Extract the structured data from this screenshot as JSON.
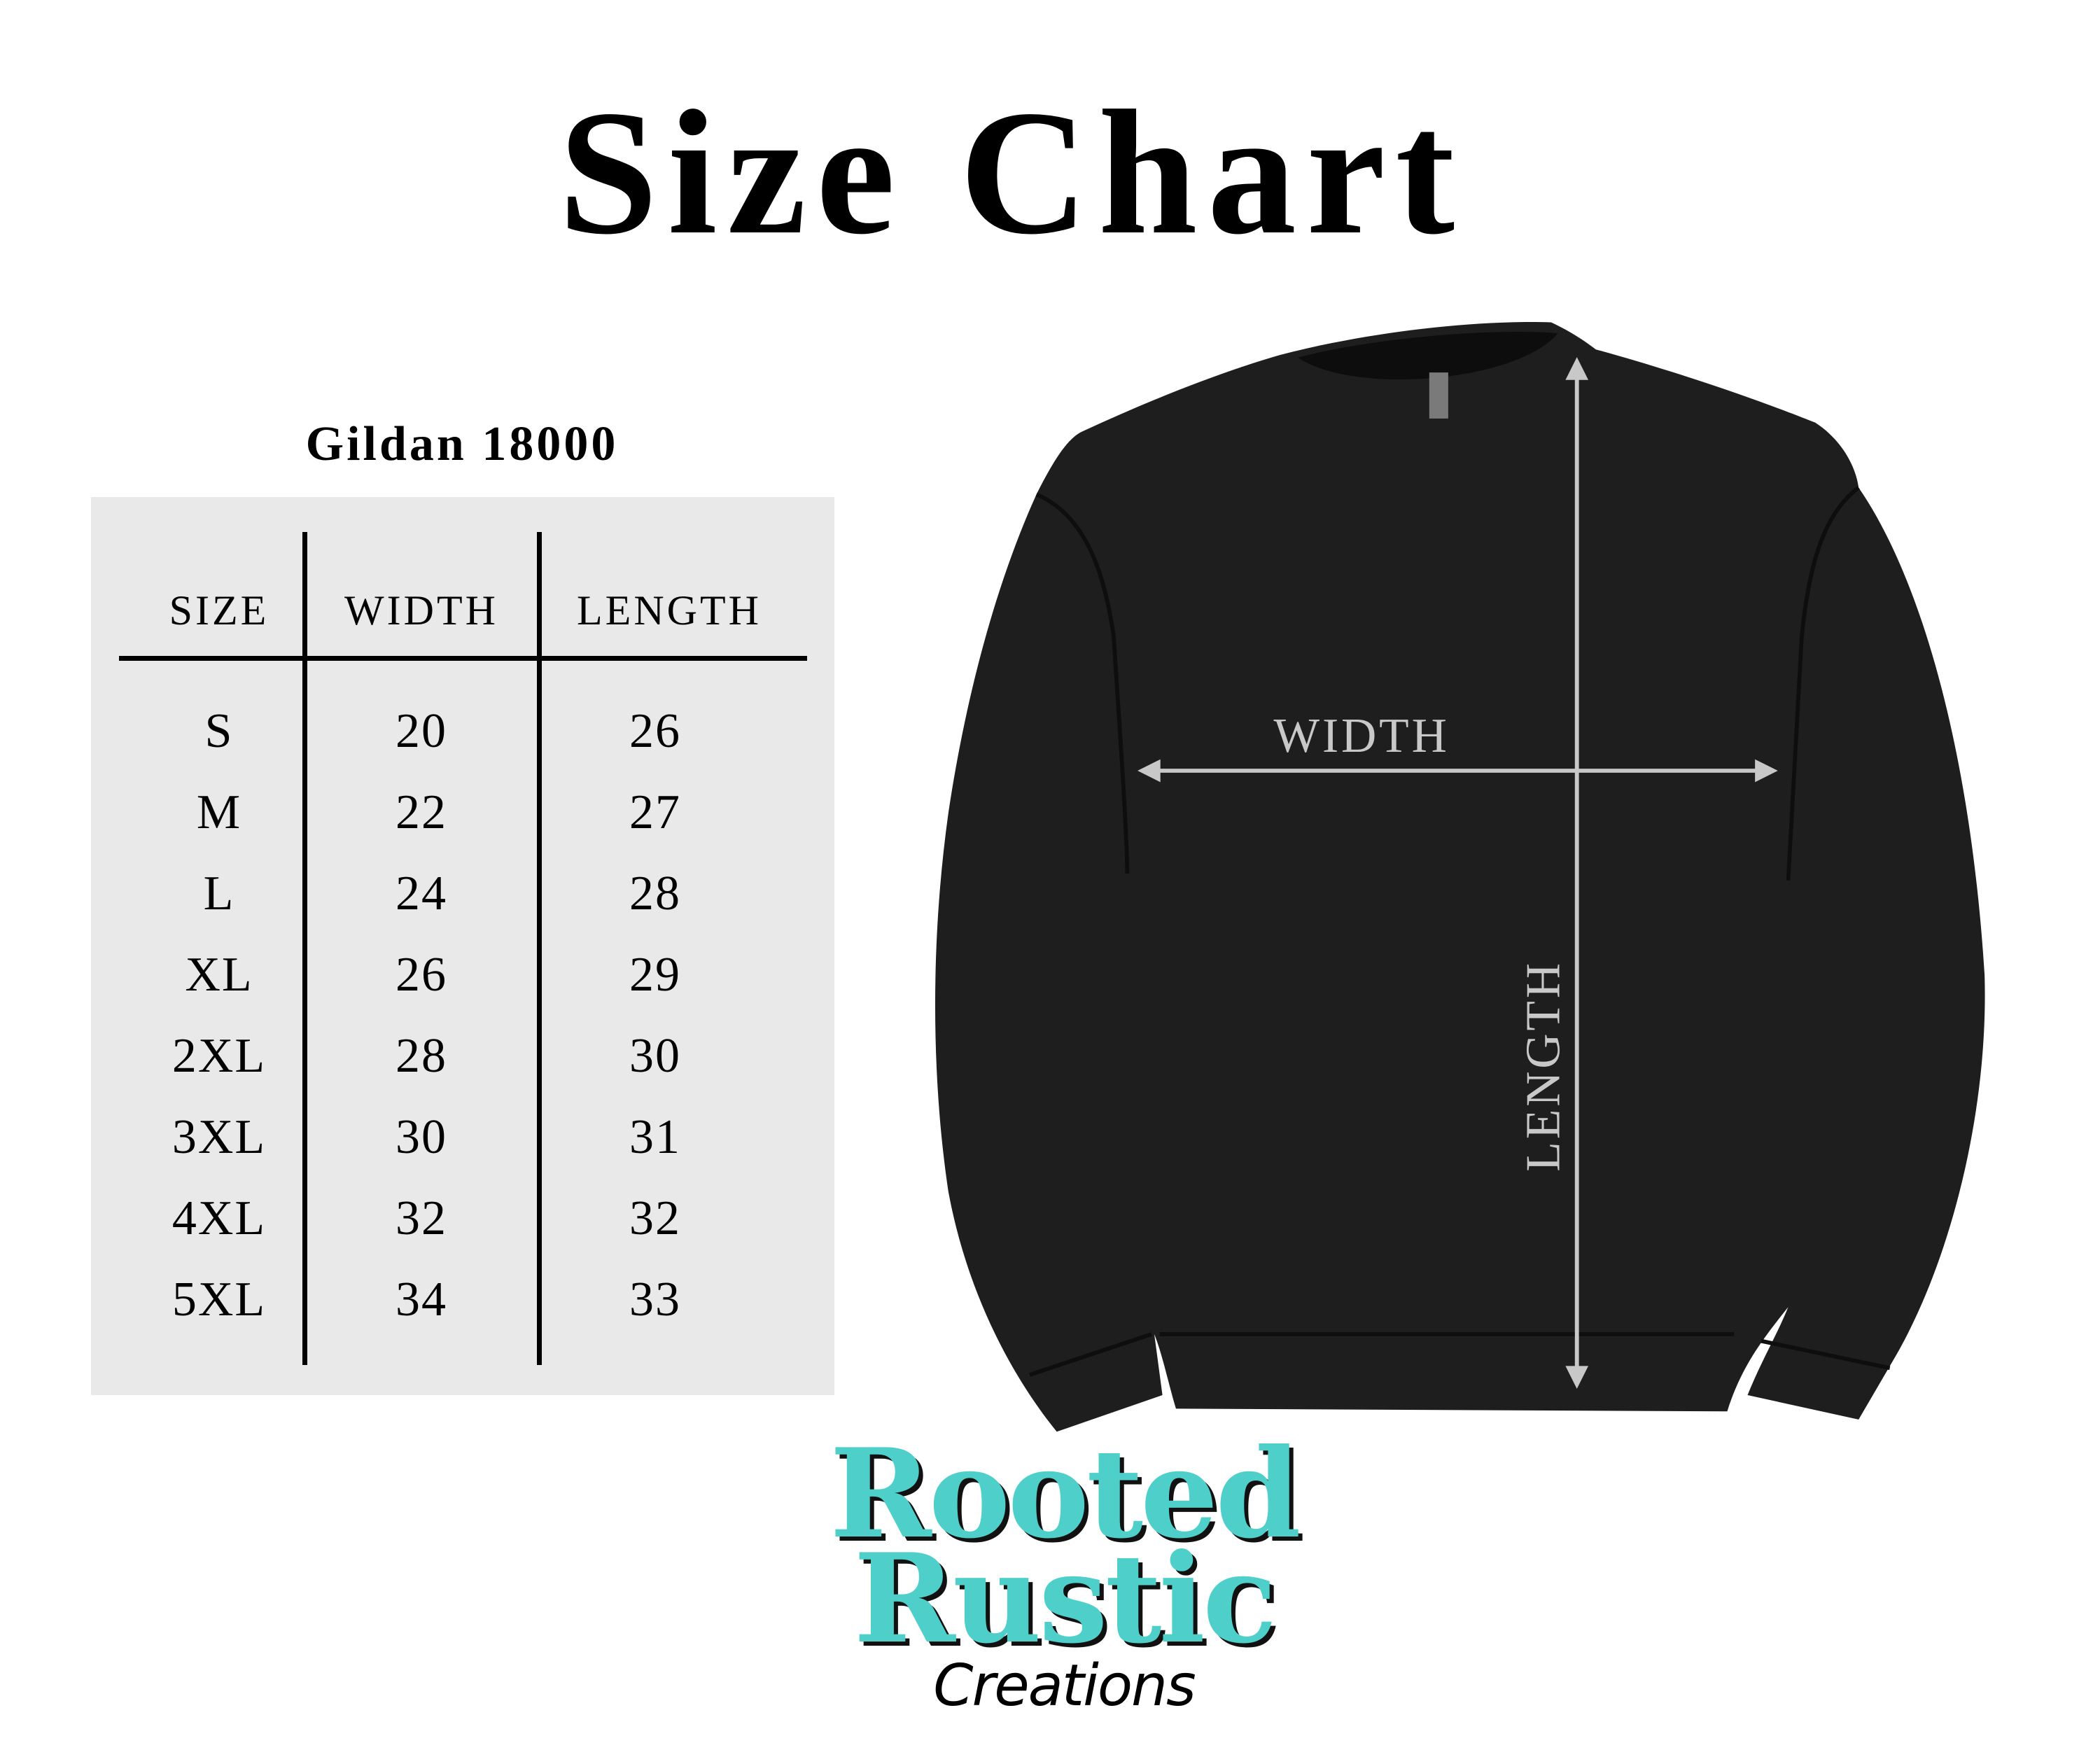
{
  "title": "Size Chart",
  "product": "Gildan 18000",
  "table": {
    "headers": [
      "SIZE",
      "WIDTH",
      "LENGTH"
    ],
    "rows": [
      {
        "size": "S",
        "width": "20",
        "length": "26"
      },
      {
        "size": "M",
        "width": "22",
        "length": "27"
      },
      {
        "size": "L",
        "width": "24",
        "length": "28"
      },
      {
        "size": "XL",
        "width": "26",
        "length": "29"
      },
      {
        "size": "2XL",
        "width": "28",
        "length": "30"
      },
      {
        "size": "3XL",
        "width": "30",
        "length": "31"
      },
      {
        "size": "4XL",
        "width": "32",
        "length": "32"
      },
      {
        "size": "5XL",
        "width": "34",
        "length": "33"
      }
    ]
  },
  "diagram": {
    "width_label": "WIDTH",
    "length_label": "LENGTH",
    "garment_color": "#1e1e1e",
    "measure_color": "#c8c8c8"
  },
  "logo": {
    "line1": "Rooted",
    "line2": "Rustic",
    "line3": "Creations",
    "brand_color": "#4ecfca"
  }
}
